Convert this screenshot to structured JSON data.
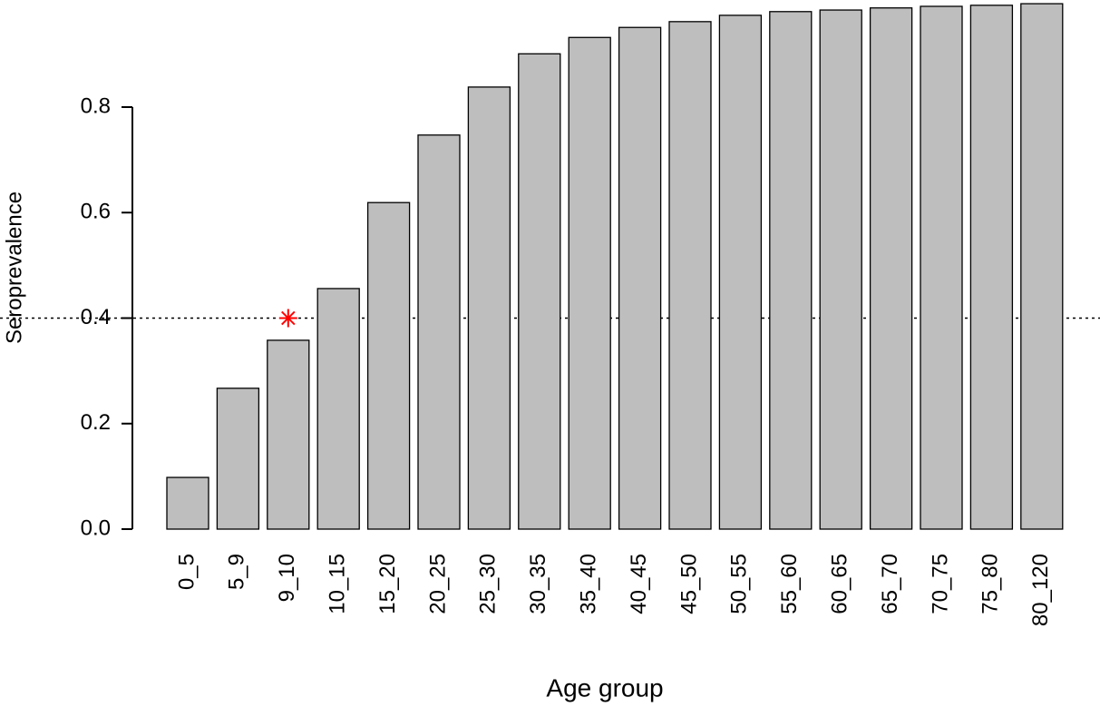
{
  "chart_data": {
    "type": "bar",
    "xlabel": "Age group",
    "ylabel": "Seroprevalence",
    "categories": [
      "0_5",
      "5_9",
      "9_10",
      "10_15",
      "15_20",
      "20_25",
      "25_30",
      "30_35",
      "35_40",
      "40_45",
      "45_50",
      "50_55",
      "55_60",
      "60_65",
      "65_70",
      "70_75",
      "75_80",
      "80_120"
    ],
    "values": [
      0.098,
      0.267,
      0.358,
      0.456,
      0.619,
      0.747,
      0.838,
      0.901,
      0.932,
      0.951,
      0.962,
      0.974,
      0.981,
      0.984,
      0.988,
      0.991,
      0.993,
      0.996
    ],
    "color": "#bebebe",
    "ylim": [
      0,
      1
    ],
    "yticks": [
      {
        "value": 0,
        "label": "0.0"
      },
      0.2,
      0.4,
      0.6,
      0.8
    ],
    "reference_line": 0.4,
    "marker": {
      "category": "9_10",
      "value": 0.4,
      "color": "#ff0000"
    }
  }
}
